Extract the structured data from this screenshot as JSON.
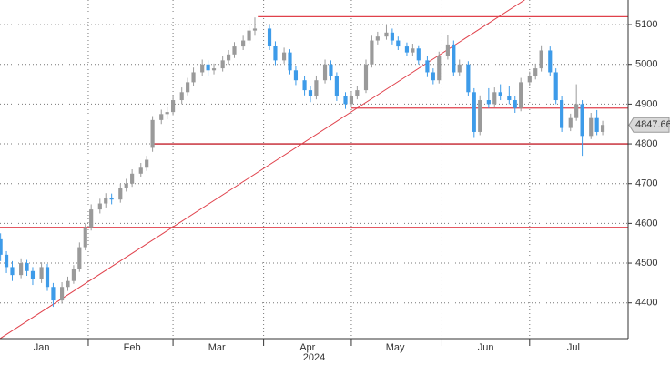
{
  "chart_data": {
    "type": "candlestick",
    "year_label": "2024",
    "up_color": "#9a9a9a",
    "down_color": "#3d9be9",
    "grid": true,
    "xlim": [
      1.8,
      216.7
    ],
    "ylim": [
      4310,
      5162
    ],
    "yticks": [
      4400,
      4500,
      4600,
      4700,
      4800,
      4900,
      5000,
      5100
    ],
    "xticks": [
      {
        "value": 1,
        "label": "Jan"
      },
      {
        "value": 32,
        "label": "Feb"
      },
      {
        "value": 61,
        "label": "Mar"
      },
      {
        "value": 92,
        "label": "Apr"
      },
      {
        "value": 122,
        "label": "May"
      },
      {
        "value": 153,
        "label": "Jun"
      },
      {
        "value": 183,
        "label": "Jul"
      }
    ],
    "x": [
      2,
      4,
      6,
      9,
      11,
      13,
      16,
      18,
      20,
      23,
      25,
      27,
      29,
      31,
      33,
      36,
      38,
      40,
      43,
      45,
      47,
      50,
      52,
      54,
      57,
      59,
      61,
      64,
      66,
      68,
      71,
      73,
      75,
      78,
      80,
      82,
      85,
      87,
      89,
      94,
      96,
      99,
      101,
      103,
      106,
      108,
      110,
      113,
      115,
      117,
      120,
      122,
      124,
      127,
      129,
      131,
      134,
      136,
      138,
      141,
      143,
      145,
      148,
      150,
      152,
      155,
      157,
      159,
      162,
      164,
      166,
      169,
      171,
      173,
      176,
      178,
      180,
      183,
      185,
      187,
      190,
      192,
      194,
      197,
      199,
      201,
      204,
      206,
      208
    ],
    "open": [
      4560,
      4521,
      4490,
      4470,
      4500,
      4480,
      4460,
      4490,
      4440,
      4406,
      4440,
      4455,
      4485,
      4540,
      4590,
      4635,
      4650,
      4665,
      4660,
      4690,
      4700,
      4725,
      4740,
      4790,
      4860,
      4875,
      4880,
      4910,
      4930,
      4955,
      4980,
      5000,
      4985,
      4990,
      5010,
      5025,
      5045,
      5060,
      5085,
      5090,
      5047,
      5010,
      5030,
      4985,
      4960,
      4935,
      4920,
      4960,
      5000,
      4970,
      4920,
      4900,
      4920,
      4935,
      5000,
      5060,
      5070,
      5080,
      5060,
      5045,
      5030,
      5040,
      5010,
      4980,
      4960,
      5020,
      5050,
      4980,
      5000,
      4930,
      4830,
      4910,
      4900,
      4930,
      4920,
      4910,
      4890,
      4955,
      4970,
      4990,
      5035,
      4980,
      4910,
      4840,
      4865,
      4900,
      4820,
      4865,
      4830
    ],
    "high": [
      4575,
      4530,
      4505,
      4512,
      4508,
      4490,
      4502,
      4498,
      4450,
      4452,
      4466,
      4495,
      4552,
      4600,
      4648,
      4662,
      4676,
      4675,
      4700,
      4712,
      4736,
      4752,
      4770,
      4870,
      4886,
      4892,
      4920,
      4942,
      4966,
      4992,
      5012,
      5010,
      5002,
      5022,
      5036,
      5056,
      5072,
      5096,
      5118,
      5100,
      5058,
      5042,
      5038,
      4995,
      4970,
      4945,
      4972,
      5012,
      5010,
      4980,
      4930,
      4932,
      4946,
      5012,
      5072,
      5082,
      5098,
      5090,
      5070,
      5055,
      5052,
      5048,
      5020,
      4990,
      5032,
      5075,
      5060,
      5012,
      5008,
      4940,
      4922,
      4940,
      4942,
      4950,
      4945,
      4920,
      4966,
      4982,
      5002,
      5048,
      5045,
      4990,
      4920,
      4876,
      4950,
      4910,
      4878,
      4885,
      4858
    ],
    "low": [
      4505,
      4475,
      4455,
      4462,
      4468,
      4445,
      4450,
      4430,
      4390,
      4398,
      4430,
      4448,
      4478,
      4532,
      4582,
      4625,
      4640,
      4648,
      4652,
      4680,
      4692,
      4716,
      4732,
      4780,
      4850,
      4862,
      4872,
      4900,
      4922,
      4945,
      4970,
      4972,
      4975,
      4982,
      5000,
      5016,
      5036,
      5052,
      5072,
      5036,
      4998,
      5002,
      4975,
      4948,
      4922,
      4905,
      4912,
      4952,
      4960,
      4908,
      4888,
      4892,
      4912,
      4928,
      4992,
      5050,
      5062,
      5050,
      5036,
      5020,
      5022,
      5000,
      4968,
      4950,
      4952,
      5012,
      4970,
      4972,
      4920,
      4815,
      4822,
      4890,
      4892,
      4910,
      4900,
      4878,
      4882,
      4945,
      4962,
      4982,
      4970,
      4900,
      4830,
      4832,
      4858,
      4770,
      4812,
      4822,
      4822
    ],
    "close": [
      4521,
      4490,
      4470,
      4500,
      4480,
      4460,
      4490,
      4440,
      4406,
      4440,
      4455,
      4485,
      4540,
      4590,
      4635,
      4650,
      4665,
      4660,
      4690,
      4700,
      4725,
      4740,
      4760,
      4860,
      4875,
      4880,
      4910,
      4930,
      4955,
      4980,
      5000,
      4985,
      4990,
      5010,
      5025,
      5045,
      5060,
      5085,
      5090,
      5047,
      5010,
      5030,
      4985,
      4960,
      4935,
      4920,
      4960,
      5000,
      4970,
      4920,
      4900,
      4920,
      4935,
      5000,
      5060,
      5070,
      5080,
      5060,
      5045,
      5030,
      5040,
      5010,
      4980,
      4960,
      5020,
      5050,
      4980,
      5000,
      4930,
      4830,
      4910,
      4900,
      4930,
      4920,
      4910,
      4890,
      4955,
      4970,
      4990,
      5035,
      4980,
      4910,
      4840,
      4865,
      4900,
      4820,
      4865,
      4830,
      4847.66
    ],
    "hlines": [
      {
        "y": 5120,
        "from": 90,
        "color": "#e0414b"
      },
      {
        "y": 4890,
        "from": 122,
        "color": "#e0414b"
      },
      {
        "y": 4800,
        "from": 54,
        "color": "#c4202c"
      },
      {
        "y": 4590,
        "from": 1.8,
        "color": "#e0414b"
      }
    ],
    "trendline": {
      "x": [
        1.8,
        181.3
      ],
      "y": [
        4310,
        5162
      ],
      "color": "#e0414b"
    }
  }
}
